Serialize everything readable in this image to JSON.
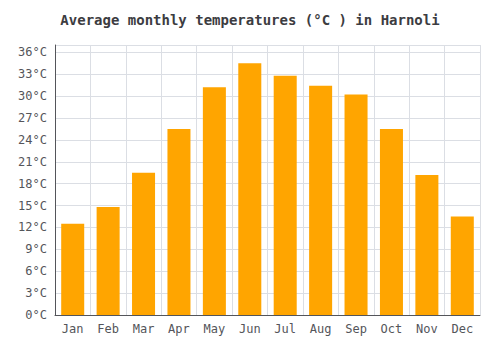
{
  "chart_data": {
    "type": "bar",
    "title": "Average monthly temperatures (°C ) in Harnoli",
    "categories": [
      "Jan",
      "Feb",
      "Mar",
      "Apr",
      "May",
      "Jun",
      "Jul",
      "Aug",
      "Sep",
      "Oct",
      "Nov",
      "Dec"
    ],
    "values": [
      12.5,
      14.8,
      19.5,
      25.5,
      31.2,
      34.5,
      32.8,
      31.4,
      30.2,
      25.5,
      19.2,
      13.5
    ],
    "color": "#FFA500",
    "ylim": [
      0,
      37
    ],
    "yticks": [
      {
        "value": 0,
        "label": "0°C"
      },
      {
        "value": 3,
        "label": "3°C"
      },
      {
        "value": 6,
        "label": "6°C"
      },
      {
        "value": 9,
        "label": "9°C"
      },
      {
        "value": 12,
        "label": "12°C"
      },
      {
        "value": 15,
        "label": "15°C"
      },
      {
        "value": 18,
        "label": "18°C"
      },
      {
        "value": 21,
        "label": "21°C"
      },
      {
        "value": 24,
        "label": "24°C"
      },
      {
        "value": 27,
        "label": "27°C"
      },
      {
        "value": 30,
        "label": "30°C"
      },
      {
        "value": 33,
        "label": "33°C"
      },
      {
        "value": 36,
        "label": "36°C"
      }
    ],
    "grid": true
  }
}
